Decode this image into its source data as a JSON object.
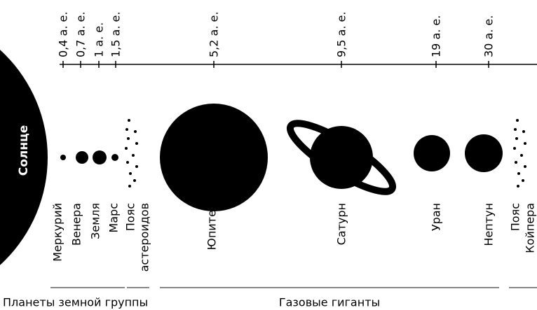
{
  "sun": "Солнце",
  "distances": [
    "0,4 а. е.",
    "0,7 а. е.",
    "1 а. е.",
    "1,5 а. е.",
    "5,2 а. е.",
    "9,5 а. е.",
    "19 а. е.",
    "30 а. е."
  ],
  "planets": [
    "Меркурий",
    "Венера",
    "Земля",
    "Марс",
    "Юпитер",
    "Сатурн",
    "Уран",
    "Нептун"
  ],
  "belts": [
    [
      "Пояс",
      "астероидов"
    ],
    [
      "Пояс",
      "Койпера"
    ]
  ],
  "groups": [
    "Планеты земной группы",
    "Газовые гиганты"
  ]
}
